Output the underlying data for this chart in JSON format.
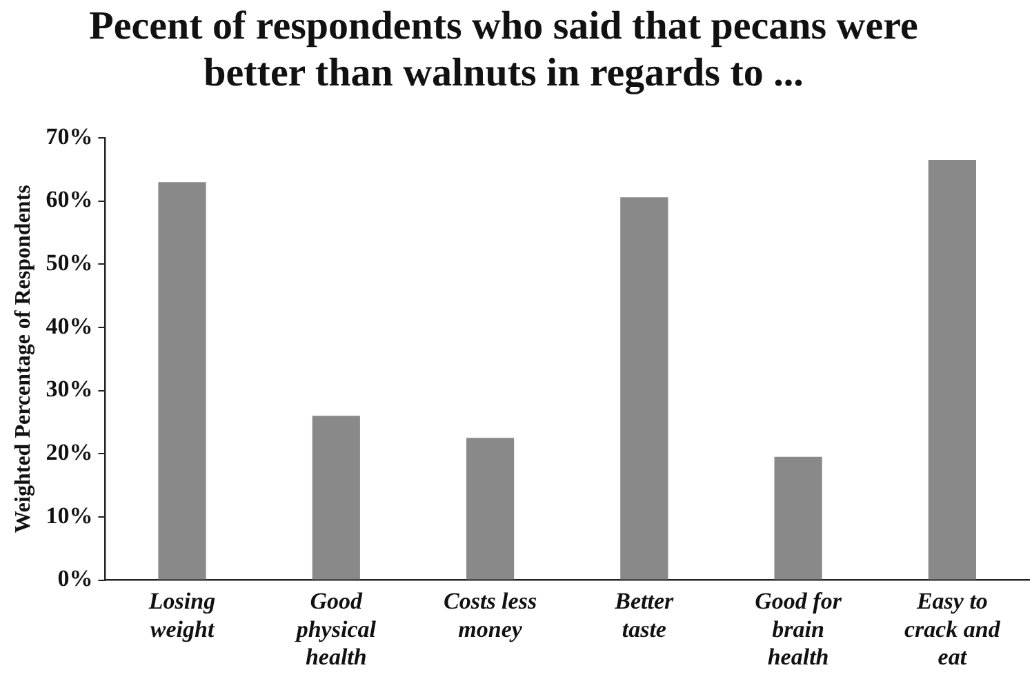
{
  "chart_data": {
    "type": "bar",
    "title": "Pecent of respondents who said that pecans were better than walnuts in regards to ...",
    "ylabel": "Weighted Percentage of Respondents",
    "categories": [
      "Losing weight",
      "Good physical health",
      "Costs less money",
      "Better taste",
      "Good for brain health",
      "Easy to crack and eat"
    ],
    "values": [
      63,
      26,
      22.5,
      60.6,
      19.5,
      66.5
    ],
    "color": "#898989",
    "ylim": [
      0,
      70
    ],
    "yticks": [
      {
        "value": 0,
        "label": "0%"
      },
      {
        "value": 10,
        "label": "10%"
      },
      {
        "value": 20,
        "label": "20%"
      },
      {
        "value": 30,
        "label": "30%"
      },
      {
        "value": 40,
        "label": "40%"
      },
      {
        "value": 50,
        "label": "50%"
      },
      {
        "value": 60,
        "label": "60%"
      },
      {
        "value": 70,
        "label": "70%"
      }
    ],
    "grid": false,
    "legend": false
  }
}
